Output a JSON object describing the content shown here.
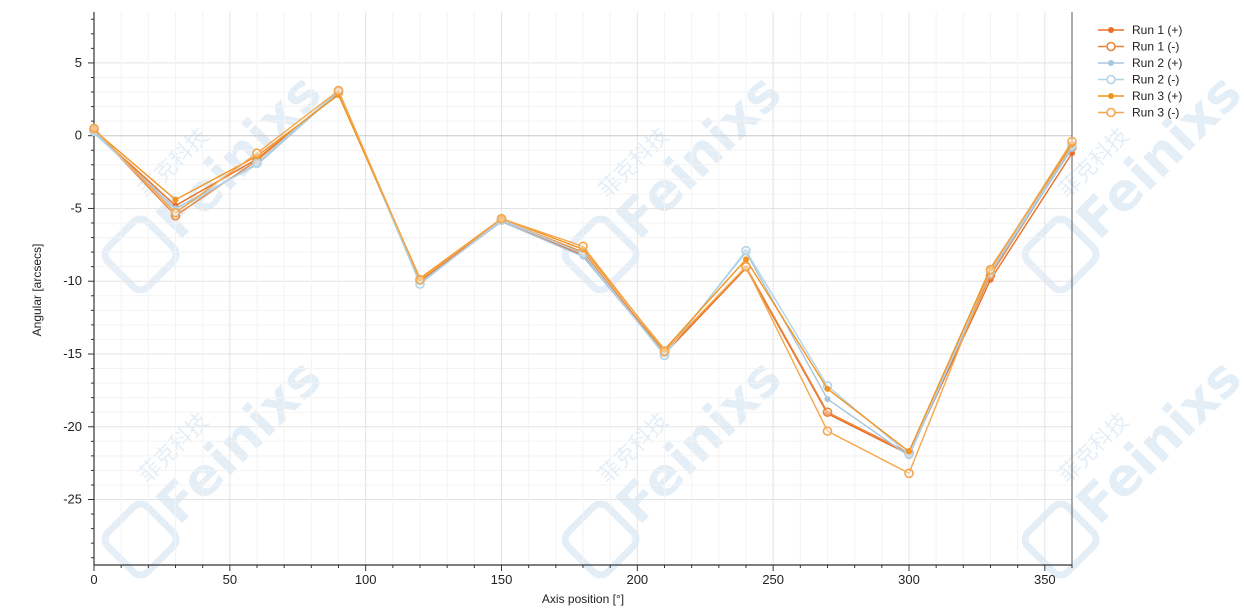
{
  "chart_data": {
    "type": "line",
    "xlabel": "Axis position [°]",
    "ylabel": "Angular [arcsecs]",
    "xlim": [
      0,
      360
    ],
    "ylim": [
      -29.5,
      8.5
    ],
    "x_ticks": [
      0,
      50,
      100,
      150,
      200,
      250,
      300,
      350
    ],
    "y_ticks": [
      5,
      0,
      -5,
      -10,
      -15,
      -20,
      -25
    ],
    "grid": true,
    "legend_position": "top-right",
    "x": [
      0,
      30,
      60,
      90,
      120,
      150,
      180,
      210,
      240,
      270,
      300,
      330,
      360
    ],
    "series": [
      {
        "name": "Run 1 (+)",
        "color": "#e8702a",
        "marker": "filled",
        "values": [
          0.3,
          -4.8,
          -1.6,
          2.9,
          -10.0,
          -5.9,
          -8.2,
          -15.0,
          -9.1,
          -19.1,
          -21.9,
          -9.9,
          -1.2
        ]
      },
      {
        "name": "Run 1 (-)",
        "color": "#e8863c",
        "marker": "open",
        "values": [
          0.4,
          -5.5,
          -1.7,
          3.0,
          -9.9,
          -5.8,
          -8.0,
          -14.9,
          -9.0,
          -19.0,
          -21.8,
          -9.6,
          -0.8
        ]
      },
      {
        "name": "Run 2 (+)",
        "color": "#a9c6dd",
        "marker": "filled",
        "values": [
          0.2,
          -5.0,
          -2.0,
          3.0,
          -10.1,
          -5.9,
          -8.3,
          -15.0,
          -8.0,
          -18.1,
          -22.0,
          -9.4,
          -0.9
        ]
      },
      {
        "name": "Run 2 (-)",
        "color": "#b3d3e6",
        "marker": "open",
        "values": [
          0.3,
          -5.2,
          -1.9,
          3.1,
          -10.2,
          -5.8,
          -8.1,
          -15.1,
          -7.9,
          -17.2,
          -21.9,
          -9.3,
          -0.7
        ]
      },
      {
        "name": "Run 3 (+)",
        "color": "#f2941d",
        "marker": "filled",
        "values": [
          0.4,
          -4.4,
          -1.4,
          2.8,
          -9.8,
          -5.7,
          -7.8,
          -14.7,
          -8.5,
          -17.4,
          -21.7,
          -9.1,
          -0.6
        ]
      },
      {
        "name": "Run 3 (-)",
        "color": "#f5a64a",
        "marker": "open",
        "values": [
          0.5,
          -5.3,
          -1.2,
          3.1,
          -9.9,
          -5.7,
          -7.6,
          -14.8,
          -9.0,
          -20.3,
          -23.2,
          -9.2,
          -0.4
        ]
      }
    ]
  },
  "watermark": {
    "text": "Feinixs",
    "cjk": "菲克科技"
  }
}
